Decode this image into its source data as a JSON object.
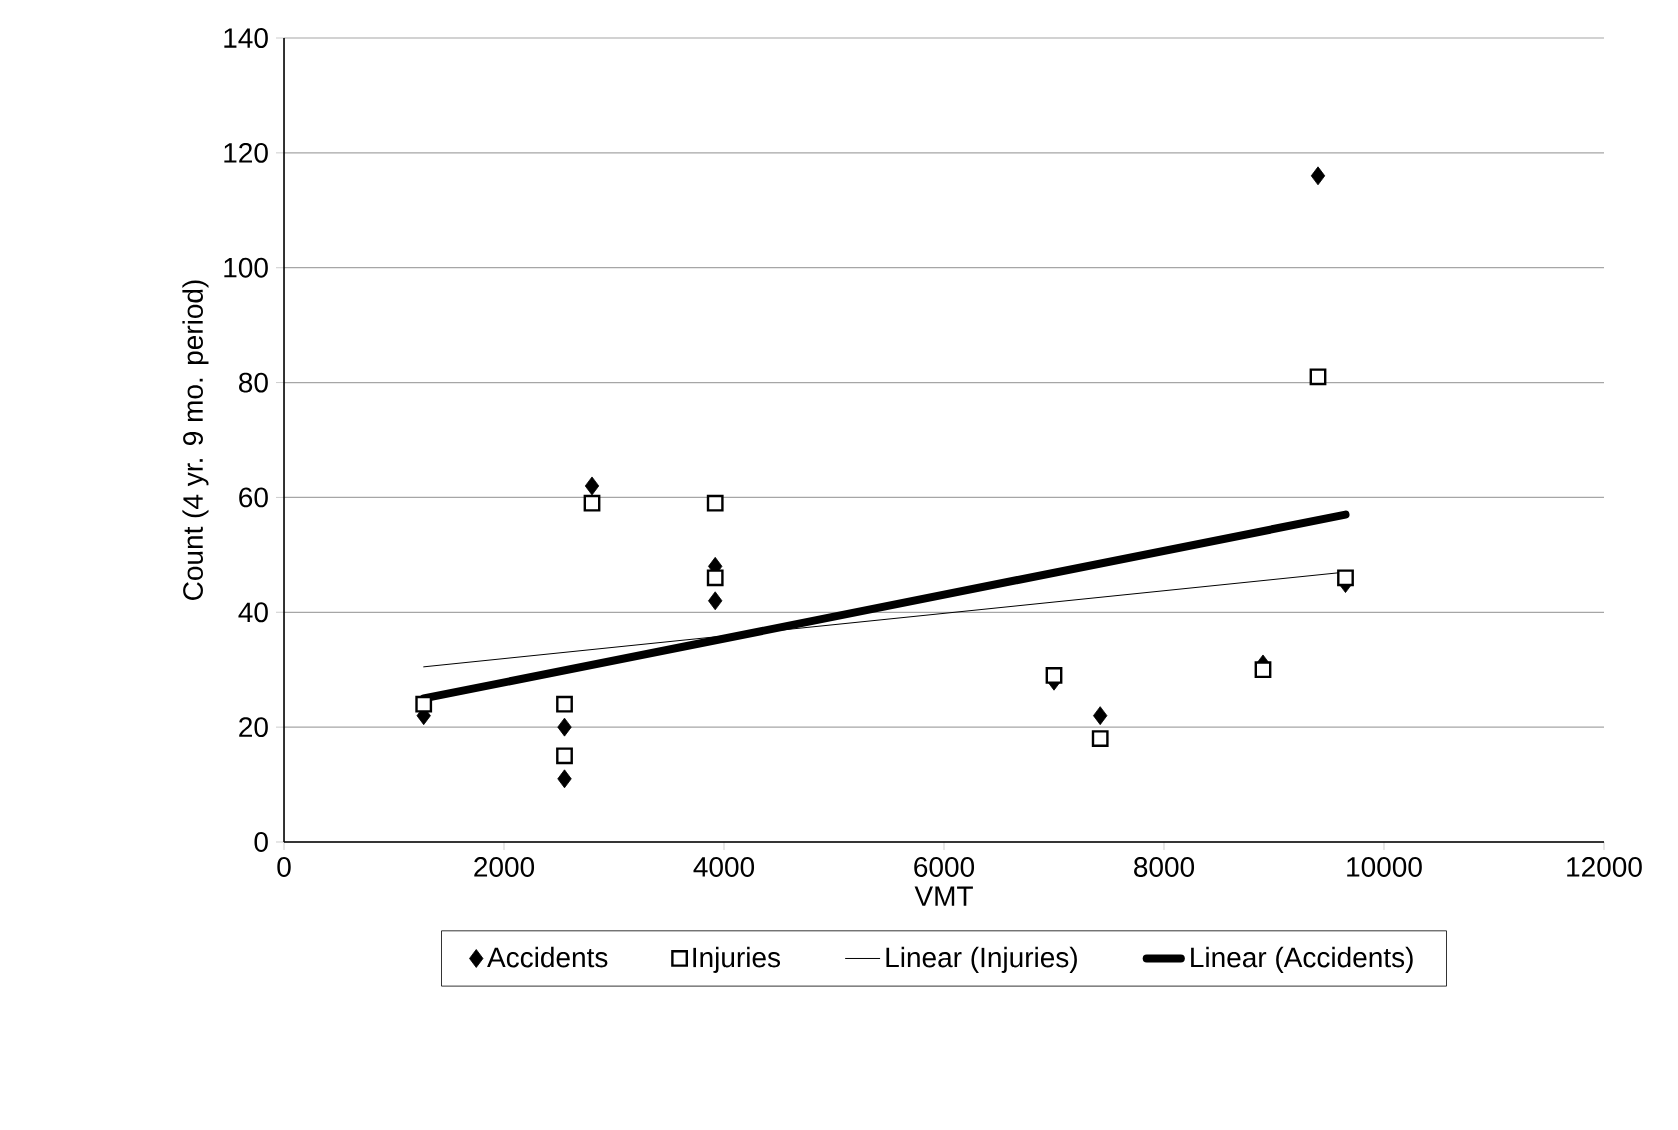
{
  "chart_data": {
    "type": "scatter",
    "xlabel": "VMT",
    "ylabel": "Count (4 yr. 9 mo. period)",
    "xlim": [
      0,
      12000
    ],
    "xticks": [
      0,
      2000,
      4000,
      6000,
      8000,
      10000,
      12000
    ],
    "ylim": [
      0,
      140
    ],
    "yticks": [
      0,
      20,
      40,
      60,
      80,
      100,
      120,
      140
    ],
    "grid": "y",
    "legend": "bottom",
    "series": [
      {
        "name": "Accidents",
        "marker": "diamond",
        "color": "#000000",
        "x": [
          1270,
          2550,
          2550,
          2800,
          3920,
          3920,
          7000,
          7420,
          8900,
          9400,
          9650
        ],
        "values": [
          22,
          20,
          11,
          62,
          48,
          42,
          28,
          22,
          31,
          116,
          45
        ]
      },
      {
        "name": "Injuries",
        "marker": "square",
        "color": "#000000",
        "x": [
          1270,
          2550,
          2550,
          2800,
          3920,
          3920,
          7000,
          7420,
          8900,
          9400,
          9650
        ],
        "values": [
          24,
          24,
          15,
          59,
          59,
          46,
          29,
          18,
          30,
          81,
          46
        ]
      },
      {
        "name": "Linear (Injuries)",
        "type": "line",
        "marker": "none",
        "line_style": "solid",
        "color": "#000000",
        "x": [
          1270,
          9650
        ],
        "values": [
          30.5,
          47
        ]
      },
      {
        "name": "Linear (Accidents)",
        "type": "line",
        "marker": "none",
        "line_style": "solid",
        "color": "#000000",
        "x": [
          1270,
          9650
        ],
        "values": [
          25,
          57
        ]
      }
    ]
  }
}
